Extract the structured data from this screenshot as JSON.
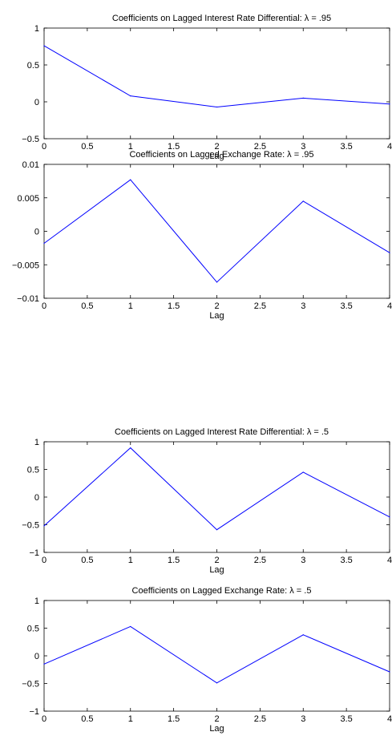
{
  "colors": {
    "line": "#0000ff",
    "axes": "#000000",
    "background": "#ffffff"
  },
  "chart_data": [
    {
      "type": "line",
      "title": "Coefficients on Lagged Interest Rate Differential: λ = .95",
      "xlabel": "Lag",
      "ylabel": "",
      "xlim": [
        0,
        4
      ],
      "ylim": [
        -0.5,
        1
      ],
      "xticks": [
        "0",
        "0.5",
        "1",
        "1.5",
        "2",
        "2.5",
        "3",
        "3.5",
        "4"
      ],
      "yticks": [
        "1",
        "0.5",
        "0",
        "−0.5"
      ],
      "grid": false,
      "x": [
        0,
        1,
        2,
        3,
        4
      ],
      "y": [
        0.76,
        0.08,
        -0.07,
        0.05,
        -0.03
      ]
    },
    {
      "type": "line",
      "title": "Coefficients on Lagged Exchange Rate: λ = .95",
      "xlabel": "Lag",
      "ylabel": "",
      "xlim": [
        0,
        4
      ],
      "ylim": [
        -0.01,
        0.01
      ],
      "xticks": [
        "0",
        "0.5",
        "1",
        "1.5",
        "2",
        "2.5",
        "3",
        "3.5",
        "4"
      ],
      "yticks": [
        "0.01",
        "0.005",
        "0",
        "−0.005",
        "−0.01"
      ],
      "grid": false,
      "x": [
        0,
        1,
        2,
        3,
        4
      ],
      "y": [
        -0.0018,
        0.0077,
        -0.0076,
        0.0045,
        -0.0032
      ]
    },
    {
      "type": "line",
      "title": "Coefficients on Lagged Interest Rate Differential: λ = .5",
      "xlabel": "Lag",
      "ylabel": "",
      "xlim": [
        0,
        4
      ],
      "ylim": [
        -1,
        1
      ],
      "xticks": [
        "0",
        "0.5",
        "1",
        "1.5",
        "2",
        "2.5",
        "3",
        "3.5",
        "4"
      ],
      "yticks": [
        "1",
        "0.5",
        "0",
        "−0.5",
        "−1"
      ],
      "grid": false,
      "x": [
        0,
        1,
        2,
        3,
        4
      ],
      "y": [
        -0.52,
        0.89,
        -0.59,
        0.45,
        -0.36
      ]
    },
    {
      "type": "line",
      "title": "Coefficients on Lagged Exchange Rate: λ = .5",
      "xlabel": "Lag",
      "ylabel": "",
      "xlim": [
        0,
        4
      ],
      "ylim": [
        -1,
        1
      ],
      "xticks": [
        "0",
        "0.5",
        "1",
        "1.5",
        "2",
        "2.5",
        "3",
        "3.5",
        "4"
      ],
      "yticks": [
        "1",
        "0.5",
        "0",
        "−0.5",
        "−1"
      ],
      "grid": false,
      "x": [
        0,
        1,
        2,
        3,
        4
      ],
      "y": [
        -0.15,
        0.53,
        -0.49,
        0.38,
        -0.29
      ]
    }
  ]
}
